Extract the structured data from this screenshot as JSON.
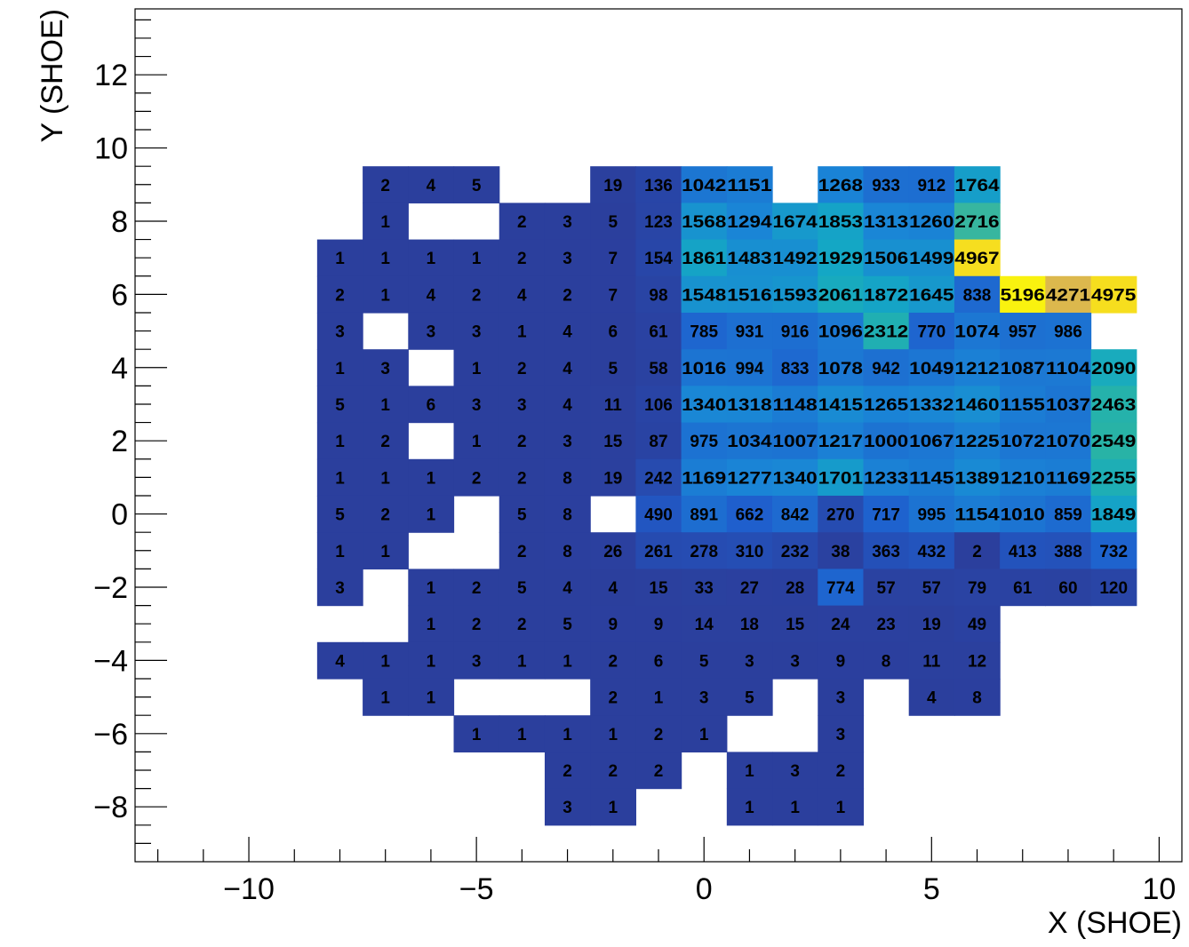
{
  "chart_data": {
    "type": "heatmap",
    "title": "",
    "xlabel": "X (SHOE)",
    "ylabel": "Y (SHOE)",
    "xlim": [
      -12.5,
      10.5
    ],
    "ylim": [
      -9.5,
      13.8
    ],
    "x_ticks": [
      -10,
      -5,
      0,
      5,
      10
    ],
    "x_tick_labels": [
      "−10",
      "−5",
      "0",
      "5",
      "10"
    ],
    "y_ticks": [
      -8,
      -6,
      -4,
      -2,
      0,
      2,
      4,
      6,
      8,
      10,
      12
    ],
    "y_tick_labels": [
      "−8",
      "−6",
      "−4",
      "−2",
      "0",
      "2",
      "4",
      "6",
      "8",
      "10",
      "12"
    ],
    "x_bins": [
      -8,
      -7,
      -6,
      -5,
      -4,
      -3,
      -2,
      -1,
      0,
      1,
      2,
      3,
      4,
      5,
      6,
      7,
      8,
      9
    ],
    "y_bins": [
      9,
      8,
      7,
      6,
      5,
      4,
      3,
      2,
      1,
      0,
      -1,
      -2,
      -3,
      -4,
      -5,
      -6,
      -7,
      -8
    ],
    "grid": false,
    "colorscale": [
      "#2b3f9d",
      "#1f5ecd",
      "#1a85d6",
      "#14a8c4",
      "#2ab4a4",
      "#71bd8a",
      "#c2b864",
      "#f0b83c",
      "#f9f20f"
    ],
    "z_max": 5196,
    "show_bin_labels": true,
    "values": [
      [
        null,
        2,
        4,
        5,
        null,
        null,
        19,
        136,
        1042,
        1151,
        null,
        1268,
        933,
        912,
        1764,
        null,
        null,
        null
      ],
      [
        null,
        1,
        null,
        null,
        2,
        3,
        5,
        123,
        1568,
        1294,
        1674,
        1853,
        1313,
        1260,
        2716,
        null,
        null,
        null
      ],
      [
        1,
        1,
        1,
        1,
        2,
        3,
        7,
        154,
        1861,
        1483,
        1492,
        1929,
        1506,
        1499,
        4967,
        null,
        null,
        null
      ],
      [
        2,
        1,
        4,
        2,
        4,
        2,
        7,
        98,
        1548,
        1516,
        1593,
        2061,
        1872,
        1645,
        838,
        5196,
        4271,
        4975
      ],
      [
        3,
        null,
        3,
        3,
        1,
        4,
        6,
        61,
        785,
        931,
        916,
        1096,
        2312,
        770,
        1074,
        957,
        986,
        null
      ],
      [
        1,
        3,
        null,
        1,
        2,
        4,
        5,
        58,
        1016,
        994,
        833,
        1078,
        942,
        1049,
        1212,
        1087,
        1104,
        2090
      ],
      [
        5,
        1,
        6,
        3,
        3,
        4,
        11,
        106,
        1340,
        1318,
        1148,
        1415,
        1265,
        1332,
        1460,
        1155,
        1037,
        2463
      ],
      [
        1,
        2,
        null,
        1,
        2,
        3,
        15,
        87,
        975,
        1034,
        1007,
        1217,
        1000,
        1067,
        1225,
        1072,
        1070,
        2549
      ],
      [
        1,
        1,
        1,
        2,
        2,
        8,
        19,
        242,
        1169,
        1277,
        1340,
        1701,
        1233,
        1145,
        1389,
        1210,
        1169,
        2255
      ],
      [
        5,
        2,
        1,
        null,
        5,
        8,
        null,
        490,
        891,
        662,
        842,
        270,
        717,
        995,
        1154,
        1010,
        859,
        1849
      ],
      [
        1,
        1,
        null,
        null,
        2,
        8,
        26,
        261,
        278,
        310,
        232,
        38,
        363,
        432,
        2,
        413,
        388,
        732
      ],
      [
        3,
        null,
        1,
        2,
        5,
        4,
        4,
        15,
        33,
        27,
        28,
        774,
        57,
        57,
        79,
        61,
        60,
        120
      ],
      [
        null,
        null,
        1,
        2,
        2,
        5,
        9,
        9,
        14,
        18,
        15,
        24,
        23,
        19,
        49,
        null,
        null,
        null
      ],
      [
        4,
        1,
        1,
        3,
        1,
        1,
        2,
        6,
        5,
        3,
        3,
        9,
        8,
        11,
        12,
        null,
        null,
        null
      ],
      [
        null,
        1,
        1,
        null,
        null,
        null,
        2,
        1,
        3,
        5,
        null,
        3,
        null,
        4,
        8,
        null,
        null,
        null
      ],
      [
        null,
        null,
        null,
        1,
        1,
        1,
        1,
        2,
        1,
        null,
        null,
        3,
        null,
        null,
        null,
        null,
        null,
        null
      ],
      [
        null,
        null,
        null,
        null,
        null,
        2,
        2,
        2,
        null,
        1,
        3,
        2,
        null,
        null,
        null,
        null,
        null,
        null
      ],
      [
        null,
        null,
        null,
        null,
        null,
        3,
        1,
        null,
        null,
        1,
        1,
        1,
        null,
        null,
        null,
        null,
        null,
        null
      ]
    ]
  }
}
